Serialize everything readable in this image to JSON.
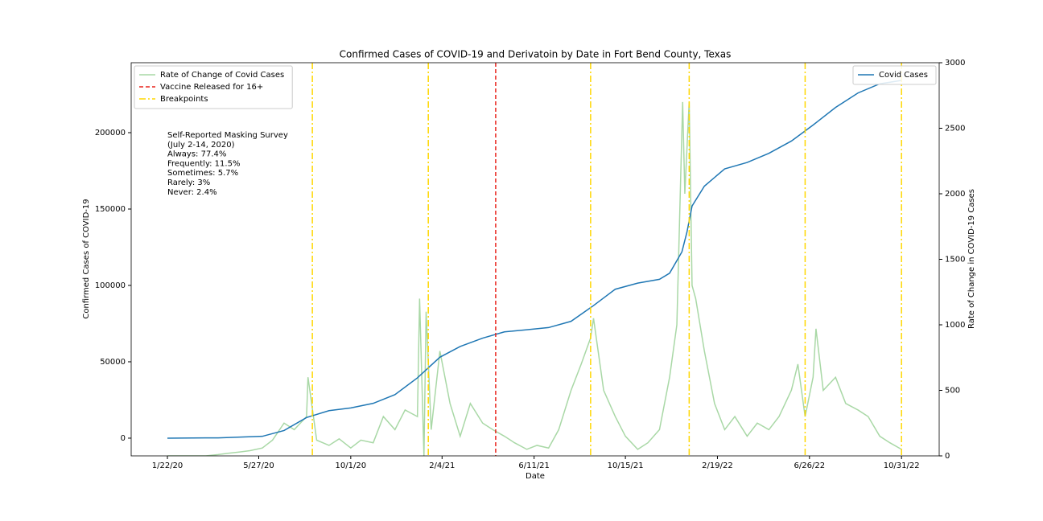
{
  "chart_data": {
    "type": "line",
    "title": "Confirmed Cases of COVID-19 and Derivatoin by Date in Fort Bend County, Texas",
    "x_label": "Date",
    "y_label": "Confirmed Cases of COVID-19",
    "y2_label": "Rate of Change in COVID-19 Cases",
    "xlim": [
      "12/3/19",
      "12/22/22"
    ],
    "xticks": [
      "1/22/20",
      "5/27/20",
      "10/1/20",
      "2/4/21",
      "6/11/21",
      "10/15/21",
      "2/19/22",
      "6/26/22",
      "10/31/22"
    ],
    "ylim": [
      -11600,
      245800
    ],
    "yticks": [
      0,
      50000,
      100000,
      150000,
      200000
    ],
    "y2lim": [
      0,
      3000
    ],
    "y2ticks": [
      0,
      500,
      1000,
      1500,
      2000,
      2500,
      3000
    ],
    "series": [
      {
        "name": "Rate of Change of Covid Cases",
        "color": "#a9d8a6",
        "axis": "y2",
        "legend": "upper left",
        "x": [
          "1/22/20",
          "2/15/20",
          "3/1/20",
          "3/15/20",
          "4/1/20",
          "4/15/20",
          "5/1/20",
          "5/15/20",
          "6/1/20",
          "6/15/20",
          "7/1/20",
          "7/15/20",
          "8/1/20",
          "8/3/20",
          "8/15/20",
          "9/1/20",
          "9/15/20",
          "10/1/20",
          "10/15/20",
          "11/1/20",
          "11/15/20",
          "12/1/20",
          "12/15/20",
          "1/1/21",
          "1/4/21",
          "1/10/21",
          "1/13/21",
          "1/20/21",
          "2/1/21",
          "2/15/21",
          "3/1/21",
          "3/15/21",
          "4/1/21",
          "4/15/21",
          "5/1/21",
          "5/15/21",
          "6/1/21",
          "6/15/21",
          "7/1/21",
          "7/15/21",
          "8/1/21",
          "8/15/21",
          "8/28/21",
          "9/1/21",
          "9/15/21",
          "10/1/21",
          "10/15/21",
          "11/1/21",
          "11/15/21",
          "12/1/21",
          "12/15/21",
          "12/25/21",
          "1/2/22",
          "1/5/22",
          "1/11/22",
          "1/15/22",
          "1/20/22",
          "2/1/22",
          "2/15/22",
          "3/1/22",
          "3/15/22",
          "4/1/22",
          "4/15/22",
          "5/1/22",
          "5/15/22",
          "6/1/22",
          "6/10/22",
          "6/20/22",
          "7/1/22",
          "7/5/22",
          "7/15/22",
          "8/1/22",
          "8/15/22",
          "9/1/22",
          "9/15/22",
          "10/1/22",
          "10/15/22",
          "10/31/22"
        ],
        "values": [
          0,
          0,
          0,
          0,
          10,
          20,
          30,
          40,
          60,
          120,
          250,
          200,
          300,
          600,
          120,
          80,
          130,
          60,
          120,
          100,
          300,
          200,
          350,
          300,
          1200,
          0,
          1100,
          200,
          800,
          400,
          150,
          400,
          250,
          200,
          150,
          100,
          50,
          80,
          60,
          200,
          500,
          700,
          900,
          1050,
          500,
          300,
          150,
          50,
          100,
          200,
          600,
          1000,
          2700,
          2000,
          2700,
          1300,
          1200,
          800,
          400,
          200,
          300,
          150,
          250,
          200,
          300,
          500,
          700,
          300,
          600,
          970,
          500,
          600,
          400,
          350,
          300,
          150,
          100,
          50
        ]
      },
      {
        "name": "Covid Cases",
        "color": "#1f77b4",
        "axis": "y",
        "legend": "upper right",
        "x": [
          "1/22/20",
          "4/1/20",
          "6/1/20",
          "7/1/20",
          "8/1/20",
          "9/1/20",
          "10/1/20",
          "11/1/20",
          "12/1/20",
          "1/1/21",
          "2/1/21",
          "3/1/21",
          "4/1/21",
          "5/1/21",
          "6/1/21",
          "7/1/21",
          "8/1/21",
          "9/1/21",
          "10/1/21",
          "11/1/21",
          "12/1/21",
          "12/15/21",
          "1/1/22",
          "1/8/22",
          "1/15/22",
          "2/1/22",
          "3/1/22",
          "4/1/22",
          "5/1/22",
          "6/1/22",
          "7/1/22",
          "8/1/22",
          "9/1/22",
          "10/1/22",
          "10/31/22"
        ],
        "values": [
          0,
          200,
          1200,
          5000,
          13500,
          18000,
          19800,
          22800,
          28500,
          39500,
          53000,
          60000,
          65500,
          69600,
          71000,
          72400,
          76500,
          86800,
          97500,
          101500,
          104000,
          108000,
          122000,
          135000,
          152000,
          165000,
          176300,
          180500,
          186500,
          194500,
          205000,
          216500,
          226000,
          232000,
          234200
        ]
      }
    ],
    "vlines": [
      {
        "name": "Vaccine Released for 16+",
        "color": "#e8231b",
        "style": "dashed",
        "legend": "upper left",
        "x": [
          "4/19/21"
        ]
      },
      {
        "name": "Breakpoints",
        "color": "#ffd700",
        "style": "dashdot",
        "legend": "upper left",
        "x": [
          "8/9/20",
          "1/16/21",
          "8/28/21",
          "1/11/22",
          "6/20/22",
          "10/31/22"
        ]
      }
    ],
    "annotation": [
      "Self-Reported Masking Survey",
      "(July 2-14, 2020)",
      "Always: 77.4%",
      "Frequently: 11.5%",
      "Sometimes: 5.7%",
      "Rarely: 3%",
      "Never: 2.4%"
    ]
  }
}
